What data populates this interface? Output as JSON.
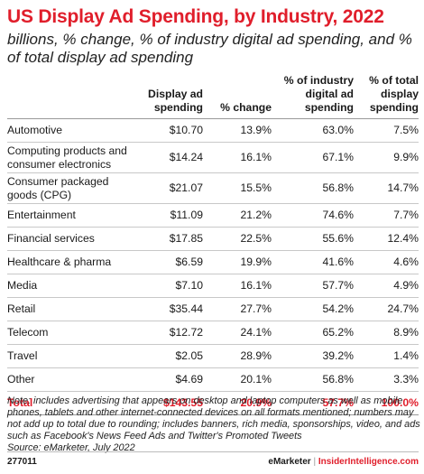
{
  "title": "US Display Ad Spending, by Industry, 2022",
  "subtitle": "billions, % change, % of industry digital ad spending, and % of total display ad spending",
  "chart_data": {
    "type": "table",
    "columns": [
      "",
      "Display ad spending",
      "% change",
      "% of industry digital ad spending",
      "% of total display spending"
    ],
    "rows": [
      [
        "Automotive",
        "$10.70",
        "13.9%",
        "63.0%",
        "7.5%"
      ],
      [
        "Computing products and consumer electronics",
        "$14.24",
        "16.1%",
        "67.1%",
        "9.9%"
      ],
      [
        "Consumer packaged goods (CPG)",
        "$21.07",
        "15.5%",
        "56.8%",
        "14.7%"
      ],
      [
        "Entertainment",
        "$11.09",
        "21.2%",
        "74.6%",
        "7.7%"
      ],
      [
        "Financial services",
        "$17.85",
        "22.5%",
        "55.6%",
        "12.4%"
      ],
      [
        "Healthcare & pharma",
        "$6.59",
        "19.9%",
        "41.6%",
        "4.6%"
      ],
      [
        "Media",
        "$7.10",
        "16.1%",
        "57.7%",
        "4.9%"
      ],
      [
        "Retail",
        "$35.44",
        "27.7%",
        "54.2%",
        "24.7%"
      ],
      [
        "Telecom",
        "$12.72",
        "24.1%",
        "65.2%",
        "8.9%"
      ],
      [
        "Travel",
        "$2.05",
        "28.9%",
        "39.2%",
        "1.4%"
      ],
      [
        "Other",
        "$4.69",
        "20.1%",
        "56.8%",
        "3.3%"
      ]
    ],
    "total": [
      "Total",
      "$143.55",
      "20.9%",
      "57.7%",
      "100.0%"
    ]
  },
  "note": "Note: includes advertising that appears on desktop and laptop computers as well as mobile phones, tablets and other internet-connected devices on all formats mentioned; numbers may not add up to total due to rounding; includes banners, rich media, sponsorships, video, and ads such as Facebook's News Feed Ads and Twitter's Promoted Tweets",
  "source": "Source: eMarketer, July 2022",
  "footer": {
    "chart_id": "277011",
    "brand_emarketer": "eMarketer",
    "separator": "|",
    "brand_insider": "InsiderIntelligence.com"
  },
  "colors": {
    "accent": "#e01e2b"
  }
}
